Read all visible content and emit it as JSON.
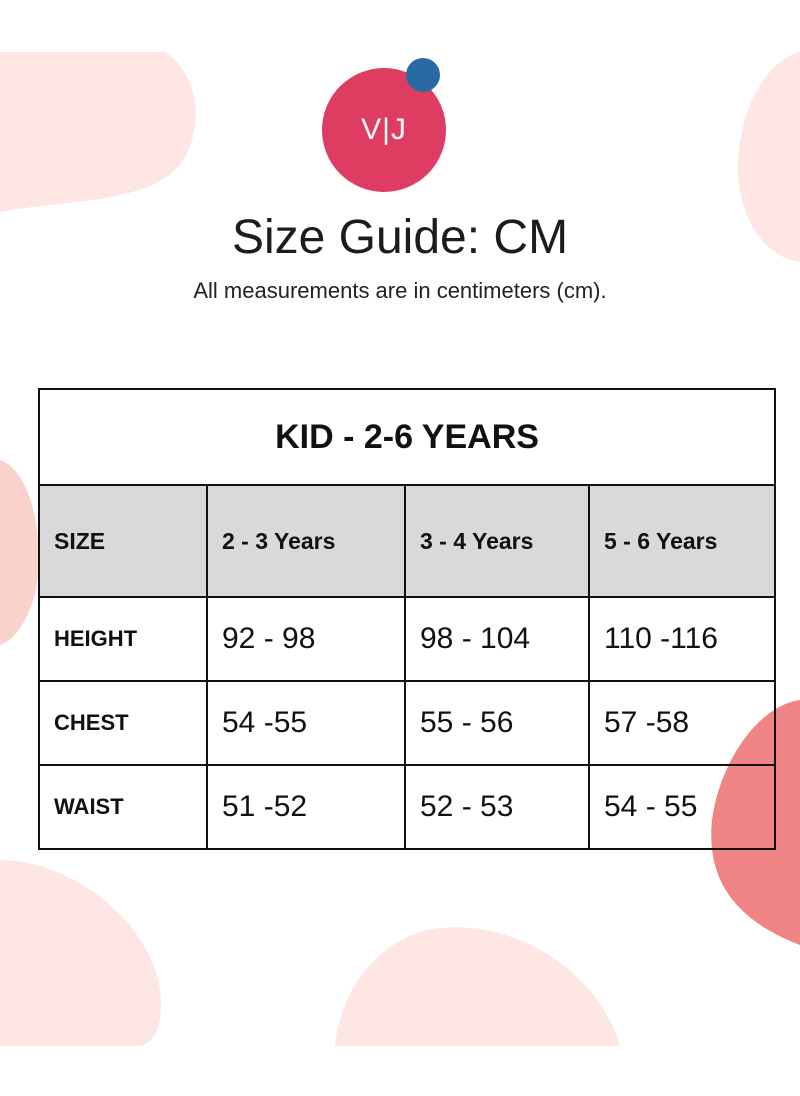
{
  "brand": {
    "logo_text": "V|J"
  },
  "header": {
    "title": "Size Guide: CM",
    "subtitle": "All measurements are in centimeters (cm)."
  },
  "table": {
    "caption": "KID - 2-6 YEARS",
    "columns": [
      "SIZE",
      "2 - 3 Years",
      "3 - 4 Years",
      "5 - 6 Years"
    ],
    "rows": [
      {
        "label": "HEIGHT",
        "values": [
          "92 - 98",
          "98 - 104",
          "110 -116"
        ]
      },
      {
        "label": "CHEST",
        "values": [
          "54 -55",
          "55 - 56",
          "57 -58"
        ]
      },
      {
        "label": "WAIST",
        "values": [
          "51 -52",
          "52 - 53",
          "54 - 55"
        ]
      }
    ]
  },
  "colors": {
    "logo": "#df3c62",
    "logo_dot": "#2a6aa4",
    "header_fill": "#d9d9d9",
    "blob_light": "#fde3e1",
    "blob_strong": "#ef8585"
  }
}
